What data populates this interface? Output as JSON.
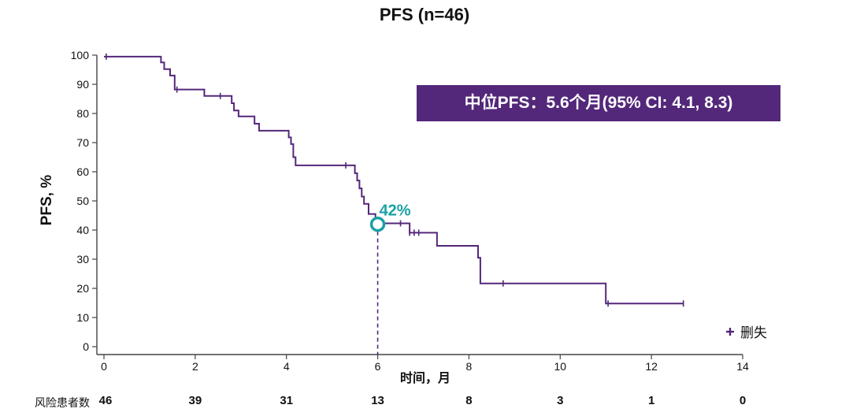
{
  "colors": {
    "curve": "#53277a",
    "highlight": "#1aa1a4",
    "axis": "#444444",
    "box_bg": "#53277a",
    "box_text": "#ffffff"
  },
  "chart_data": {
    "type": "line",
    "title": "PFS (n=46)",
    "xlabel": "时间，月",
    "ylabel": "PFS, %",
    "xlim": [
      0,
      14
    ],
    "ylim": [
      0,
      100
    ],
    "x_ticks": [
      0,
      2,
      4,
      6,
      8,
      10,
      12,
      14
    ],
    "y_ticks": [
      0,
      10,
      20,
      30,
      40,
      50,
      60,
      70,
      80,
      90,
      100
    ],
    "grid": false,
    "legend": {
      "position": "bottom-right",
      "label": "删失",
      "icon": "plus-marker"
    },
    "series": [
      {
        "step": true,
        "x": [
          0,
          1.2,
          1.25,
          1.32,
          1.45,
          1.55,
          2.05,
          2.2,
          2.6,
          2.75,
          2.8,
          2.85,
          2.95,
          3.0,
          3.3,
          3.4,
          4.0,
          4.05,
          4.1,
          4.15,
          4.2,
          4.3,
          5.4,
          5.5,
          5.55,
          5.6,
          5.65,
          5.7,
          5.8,
          5.95,
          6.1,
          6.3,
          6.5,
          6.7,
          6.9,
          7.3,
          8.2,
          8.25,
          11.0,
          12.7
        ],
        "y": [
          99.5,
          99.5,
          97.5,
          95.2,
          93,
          88.2,
          88.2,
          86,
          86,
          86,
          83.5,
          81,
          79,
          79,
          76.5,
          74.1,
          74.1,
          71.8,
          69.5,
          65,
          62.2,
          62.2,
          62.2,
          59.5,
          57,
          54.3,
          51.5,
          49,
          45.5,
          42.3,
          42.3,
          42.3,
          42.3,
          39.1,
          39.1,
          34.6,
          30.5,
          21.7,
          14.8,
          14.8
        ]
      }
    ],
    "censored": [
      [
        0.05,
        99.5
      ],
      [
        1.6,
        88.2
      ],
      [
        2.55,
        86
      ],
      [
        5.3,
        62.2
      ],
      [
        6.5,
        42.3
      ],
      [
        6.7,
        39.1
      ],
      [
        6.8,
        39.1
      ],
      [
        6.9,
        39.1
      ],
      [
        8.75,
        21.7
      ],
      [
        11.05,
        14.8
      ],
      [
        12.7,
        14.8
      ]
    ],
    "annotations": [
      {
        "x": 6,
        "y": 42,
        "label": "42%"
      }
    ],
    "median_text": "中位PFS：5.6个月(95% CI: 4.1, 8.3)",
    "risk_table": {
      "label": "风险患者数",
      "x": [
        0,
        2,
        4,
        6,
        8,
        10,
        12,
        14
      ],
      "values": [
        46,
        39,
        31,
        13,
        8,
        3,
        1,
        0
      ]
    }
  }
}
